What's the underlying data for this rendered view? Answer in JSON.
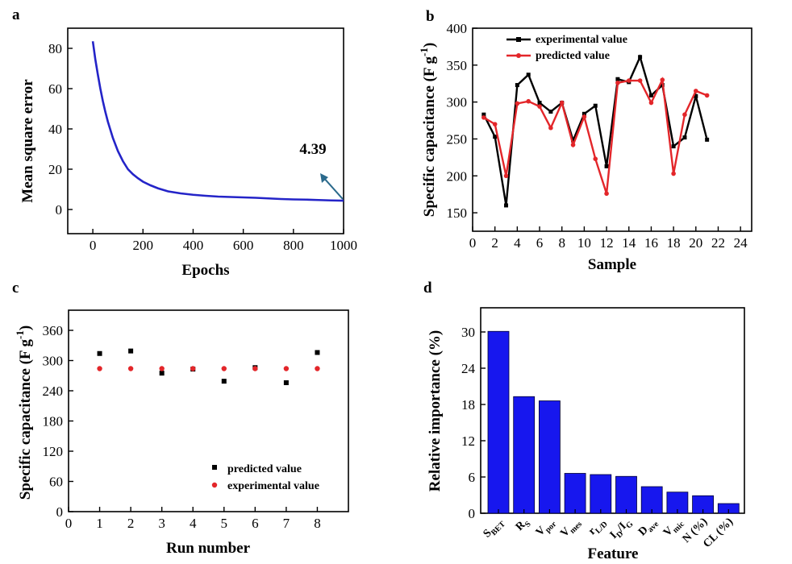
{
  "colors": {
    "blue": "#2424c8",
    "black": "#000000",
    "red": "#e3262a",
    "bar": "#1717ee",
    "arrow": "#2b6a8c"
  },
  "panels": {
    "a": "a",
    "b": "b",
    "c": "c",
    "d": "d"
  },
  "chart_data": [
    {
      "id": "a",
      "type": "line",
      "xlabel": "Epochs",
      "ylabel": "Mean square error",
      "xlim": [
        -100,
        1000
      ],
      "ylim": [
        -12,
        90
      ],
      "xticks": [
        0,
        200,
        400,
        600,
        800,
        1000
      ],
      "yticks": [
        0,
        20,
        40,
        60,
        80
      ],
      "annotation": "4.39",
      "series": [
        {
          "x": [
            0,
            10,
            20,
            30,
            40,
            50,
            60,
            80,
            100,
            120,
            140,
            160,
            180,
            200,
            230,
            260,
            300,
            350,
            400,
            450,
            500,
            550,
            600,
            650,
            700,
            750,
            800,
            850,
            900,
            950,
            1000
          ],
          "values": [
            83.5,
            74.5,
            67,
            60,
            53.8,
            48.4,
            43.6,
            35.5,
            29,
            24,
            20,
            17.5,
            15.5,
            13.8,
            12,
            10.5,
            9,
            8,
            7.3,
            6.8,
            6.4,
            6.2,
            6.0,
            5.8,
            5.5,
            5.2,
            5.0,
            4.9,
            4.7,
            4.5,
            4.39
          ]
        }
      ]
    },
    {
      "id": "b",
      "type": "line",
      "xlabel": "Sample",
      "ylabel": "Specific capacitance (F g-1)",
      "xlim": [
        0,
        25
      ],
      "ylim": [
        125,
        400
      ],
      "xticks": [
        0,
        2,
        4,
        6,
        8,
        10,
        12,
        14,
        16,
        18,
        20,
        22,
        24
      ],
      "yticks": [
        150,
        200,
        250,
        300,
        350,
        400
      ],
      "legend_position": "top-left",
      "categories": [
        1,
        2,
        3,
        4,
        5,
        6,
        7,
        8,
        9,
        10,
        11,
        12,
        13,
        14,
        15,
        16,
        17,
        18,
        19,
        20,
        21
      ],
      "series": [
        {
          "name": "experimental value",
          "values": [
            283,
            253,
            160,
            323,
            337,
            299,
            287,
            299,
            248,
            284,
            295,
            213,
            331,
            327,
            361,
            309,
            323,
            240,
            252,
            308,
            249
          ]
        },
        {
          "name": "predicted value",
          "values": [
            279,
            270,
            200,
            298,
            301,
            294,
            265,
            299,
            242,
            280,
            223,
            176,
            326,
            329,
            329,
            299,
            330,
            203,
            283,
            315,
            309
          ]
        }
      ]
    },
    {
      "id": "c",
      "type": "scatter",
      "xlabel": "Run number",
      "ylabel": "Specific capacitance (F g-1)",
      "xlim": [
        0,
        9
      ],
      "ylim": [
        0,
        400
      ],
      "xticks": [
        0,
        1,
        2,
        3,
        4,
        5,
        6,
        7,
        8
      ],
      "yticks": [
        0,
        60,
        120,
        180,
        240,
        300,
        360
      ],
      "legend_position": "bottom-right",
      "categories": [
        1,
        2,
        3,
        4,
        5,
        6,
        7,
        8
      ],
      "series": [
        {
          "name": "predicted value",
          "values": [
            314,
            319,
            275,
            283,
            259,
            286,
            256,
            316
          ]
        },
        {
          "name": "experimental value",
          "values": [
            284,
            284,
            284,
            284,
            284,
            284,
            284,
            284
          ]
        }
      ]
    },
    {
      "id": "d",
      "type": "bar",
      "xlabel": "Feature",
      "ylabel": "Relative importance (%)",
      "ylim": [
        0,
        34
      ],
      "yticks": [
        0,
        6,
        12,
        18,
        24,
        30
      ],
      "categories": [
        "S_BET",
        "R_S",
        "V_por",
        "V_mes",
        "r_L/D",
        "I_D/I_G",
        "D_ave",
        "V_mic",
        "N (%)",
        "CL (%)"
      ],
      "values": [
        30.1,
        19.3,
        18.6,
        6.6,
        6.4,
        6.1,
        4.4,
        3.5,
        2.9,
        1.6
      ]
    }
  ]
}
